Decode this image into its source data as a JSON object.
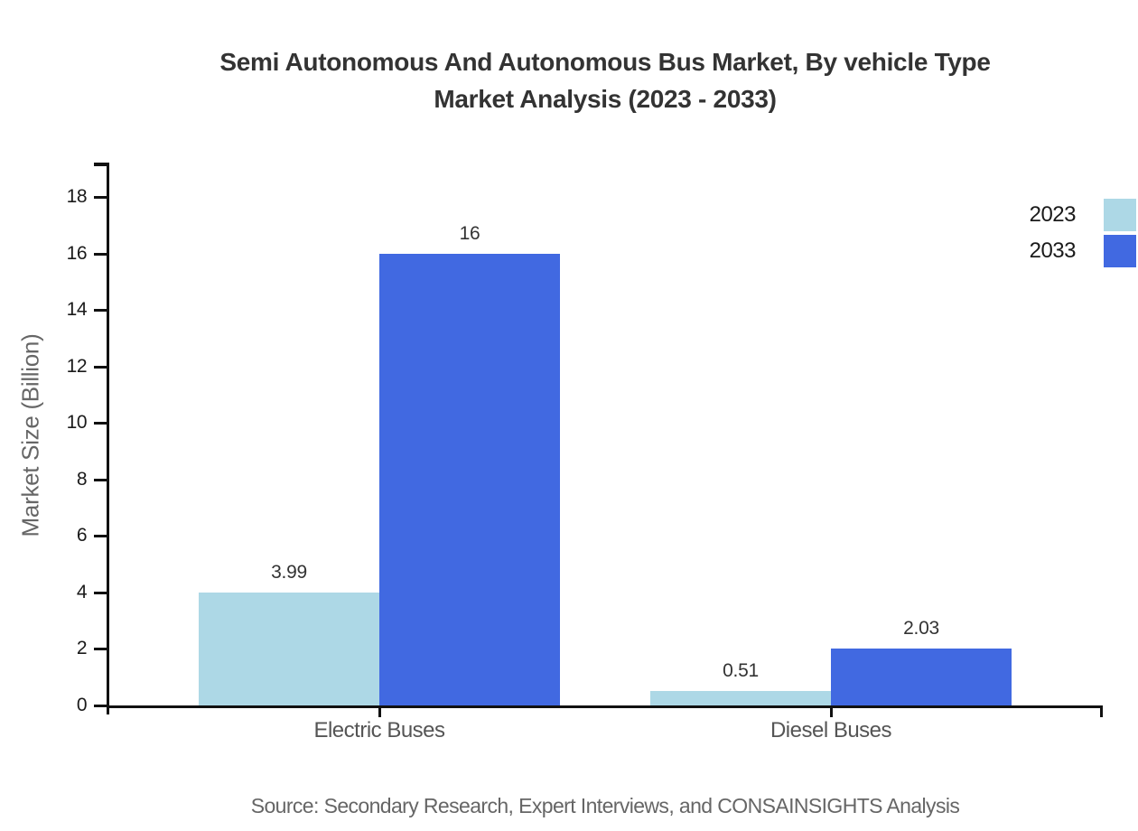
{
  "title": "Semi Autonomous And Autonomous Bus Market, By vehicle Type\nMarket Analysis (2023 - 2033)",
  "source_note": "Source: Secondary Research, Expert Interviews, and CONSAINSIGHTS Analysis",
  "colors": {
    "series_2023": "#ADD8E6",
    "series_2033": "#4169E1",
    "axis": "#111111",
    "title_text": "#333333",
    "value_label_text": "#333333",
    "category_text": "#555555",
    "source_text": "#666666"
  },
  "legend": {
    "position": "top-right",
    "items": [
      {
        "label": "2023",
        "color": "#ADD8E6"
      },
      {
        "label": "2033",
        "color": "#4169E1"
      }
    ]
  },
  "chart_data": {
    "type": "bar",
    "title": "Semi Autonomous And Autonomous Bus Market, By vehicle Type Market Analysis (2023 - 2033)",
    "categories": [
      "Electric Buses",
      "Diesel Buses"
    ],
    "series": [
      {
        "name": "2023",
        "color": "#ADD8E6",
        "values": [
          3.99,
          0.51
        ],
        "labels": [
          "3.99",
          "0.51"
        ]
      },
      {
        "name": "2033",
        "color": "#4169E1",
        "values": [
          16,
          2.03
        ],
        "labels": [
          "16",
          "2.03"
        ]
      }
    ],
    "xlabel": "",
    "ylabel": "Market Size (Billion)",
    "ylim": [
      0,
      18
    ],
    "yticks": [
      0,
      2,
      4,
      6,
      8,
      10,
      12,
      14,
      16,
      18
    ],
    "grid": false,
    "legend_position": "top-right"
  }
}
